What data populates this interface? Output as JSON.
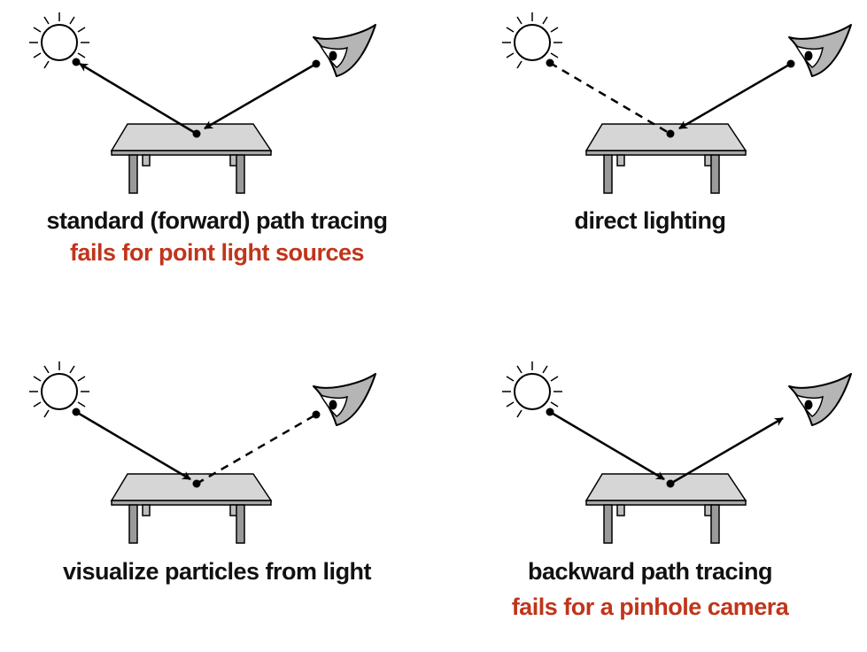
{
  "colors": {
    "stroke": "#000000",
    "table_top": "#d6d6d6",
    "table_legs": "#9a9a9a",
    "eye_fill": "#b5b5b5",
    "warning_text": "#c0351b"
  },
  "panels": [
    {
      "caption": "standard (forward) path tracing",
      "warning": "fails for point light sources"
    },
    {
      "caption": "direct lighting",
      "warning": ""
    },
    {
      "caption": "visualize particles from light",
      "warning": ""
    },
    {
      "caption": "backward path tracing",
      "warning": "fails for a pinhole camera"
    }
  ],
  "icons": {
    "light": "sun-icon",
    "camera": "eye-icon",
    "surface": "table-icon"
  }
}
